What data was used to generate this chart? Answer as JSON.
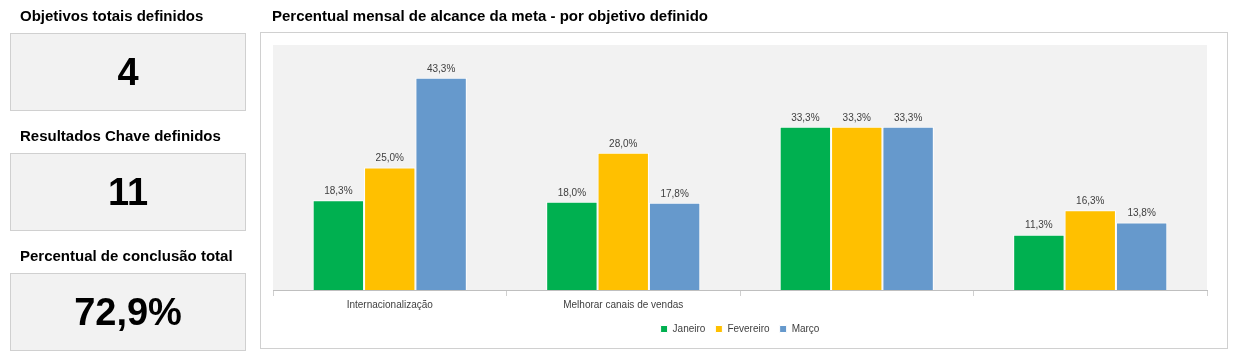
{
  "chart_data": [
    {
      "type": "other",
      "annotations": [
        "Objetivos totais definidos",
        "4",
        "Resultados Chave definidos",
        "11",
        "Percentual de conclusão total",
        "72,9%"
      ]
    },
    {
      "type": "bar",
      "title": "Percentual mensal de alcance da meta - por objetivo definido",
      "categories": [
        "Internacionalização",
        "Melhorar canais de vendas",
        null,
        null
      ],
      "series": [
        {
          "name": "Janeiro",
          "color": "#00b050",
          "values": [
            18.3,
            18.0,
            33.3,
            11.3
          ],
          "value_labels": [
            "18,3%",
            "18,0%",
            "33,3%",
            "11,3%"
          ]
        },
        {
          "name": "Fevereiro",
          "color": "#ffc000",
          "values": [
            25.0,
            28.0,
            33.3,
            16.3
          ],
          "value_labels": [
            "25,0%",
            "28,0%",
            "33,3%",
            "16,3%"
          ]
        },
        {
          "name": "Março",
          "color": "#6699cc",
          "values": [
            43.3,
            17.8,
            33.3,
            13.8
          ],
          "value_labels": [
            "43,3%",
            "17,8%",
            "33,3%",
            "13,8%"
          ]
        }
      ],
      "legend": "bottom",
      "grid": false
    }
  ]
}
